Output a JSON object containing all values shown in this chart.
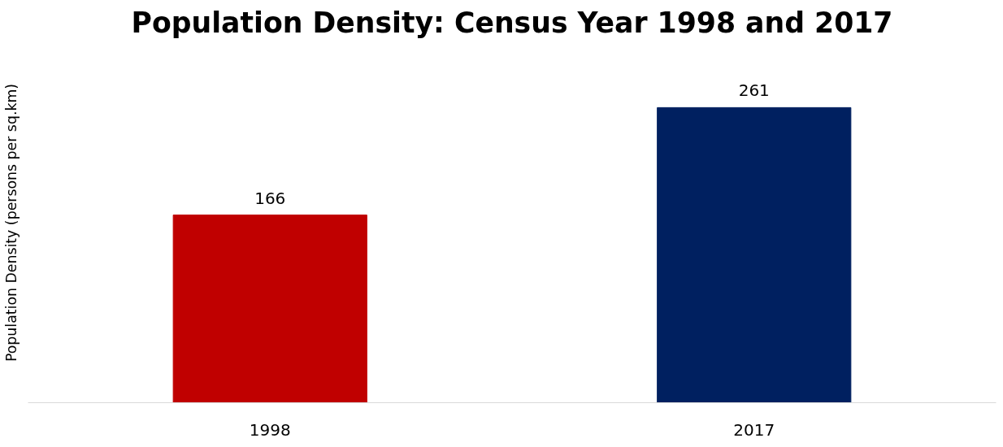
{
  "chart_data": {
    "type": "bar",
    "title": "Population Density: Census Year 1998 and 2017",
    "ylabel": "Population Density (persons per sq.km)",
    "categories": [
      "1998",
      "2017"
    ],
    "values": [
      166,
      261
    ],
    "colors": [
      "#c00000",
      "#002060"
    ],
    "data_labels": true,
    "grid": false
  }
}
